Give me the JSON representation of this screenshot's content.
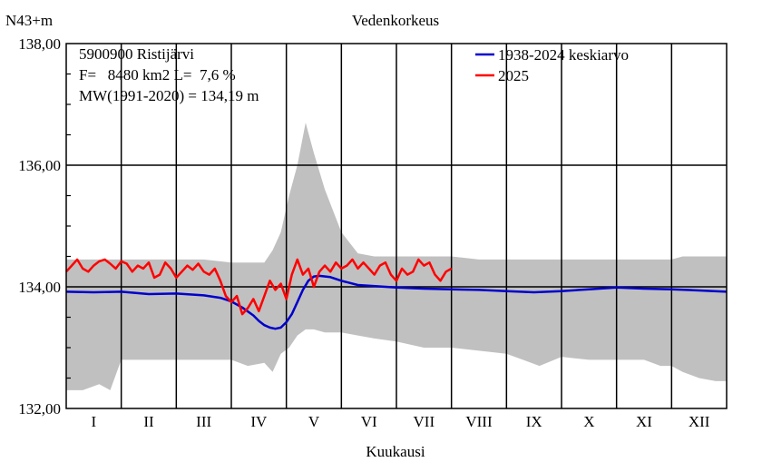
{
  "chart_data": {
    "type": "line",
    "title": "Vedenkorkeus",
    "ylabel": "N43+m",
    "xlabel": "Kuukausi",
    "station": "5900900 Ristijärvi",
    "info_line_1": "F=   8480 km2 L=  7,6 %",
    "info_line_2": "MW(1991-2020) = 134,19 m",
    "ylim": [
      132,
      138
    ],
    "yticks": [
      "132,00",
      "134,00",
      "136,00",
      "138,00"
    ],
    "minor_ytick_step": 0.5,
    "categories": [
      "I",
      "II",
      "III",
      "IV",
      "V",
      "VI",
      "VII",
      "VIII",
      "IX",
      "X",
      "XI",
      "XII"
    ],
    "grid": true,
    "legend_position": "top-right",
    "band": {
      "name": "",
      "color": "#c0c0c0",
      "x": [
        0,
        0.3,
        0.6,
        0.8,
        1.0,
        1.2,
        1.4,
        1.6,
        2.0,
        2.5,
        3.0,
        3.3,
        3.6,
        3.75,
        3.9,
        4.05,
        4.2,
        4.35,
        4.5,
        4.7,
        5.0,
        5.3,
        5.6,
        6.0,
        6.5,
        7.0,
        7.5,
        8.0,
        8.3,
        8.6,
        9.0,
        9.5,
        10.0,
        10.5,
        10.8,
        11.0,
        11.2,
        11.5,
        11.8,
        12.0
      ],
      "low": [
        132.3,
        132.3,
        132.4,
        132.3,
        132.8,
        132.8,
        132.8,
        132.8,
        132.8,
        132.8,
        132.8,
        132.7,
        132.75,
        132.6,
        132.9,
        133.0,
        133.2,
        133.3,
        133.3,
        133.25,
        133.25,
        133.2,
        133.15,
        133.1,
        133.0,
        133.0,
        132.95,
        132.9,
        132.8,
        132.7,
        132.85,
        132.8,
        132.8,
        132.8,
        132.7,
        132.7,
        132.6,
        132.5,
        132.45,
        132.45
      ],
      "high": [
        134.45,
        134.45,
        134.45,
        134.45,
        134.45,
        134.45,
        134.45,
        134.45,
        134.45,
        134.45,
        134.4,
        134.4,
        134.4,
        134.6,
        134.9,
        135.5,
        136.0,
        136.7,
        136.2,
        135.6,
        134.9,
        134.55,
        134.5,
        134.5,
        134.5,
        134.5,
        134.45,
        134.45,
        134.45,
        134.45,
        134.45,
        134.45,
        134.45,
        134.45,
        134.45,
        134.45,
        134.5,
        134.5,
        134.5,
        134.5
      ]
    },
    "series": [
      {
        "name": "1938-2024 keskiarvo",
        "color": "#0000cc",
        "x": [
          0,
          0.5,
          1.0,
          1.5,
          2.0,
          2.5,
          2.8,
          3.0,
          3.2,
          3.4,
          3.5,
          3.6,
          3.7,
          3.8,
          3.9,
          4.0,
          4.1,
          4.2,
          4.3,
          4.4,
          4.5,
          4.6,
          4.8,
          5.0,
          5.3,
          6.0,
          6.5,
          7.0,
          7.5,
          8.0,
          8.5,
          9.0,
          9.5,
          10.0,
          10.5,
          11.0,
          11.5,
          12.0
        ],
        "values": [
          133.92,
          133.91,
          133.92,
          133.88,
          133.89,
          133.86,
          133.82,
          133.76,
          133.66,
          133.53,
          133.44,
          133.37,
          133.33,
          133.31,
          133.33,
          133.42,
          133.55,
          133.75,
          133.95,
          134.1,
          134.17,
          134.18,
          134.16,
          134.1,
          134.03,
          133.99,
          133.97,
          133.96,
          133.95,
          133.93,
          133.91,
          133.93,
          133.96,
          133.99,
          133.97,
          133.96,
          133.94,
          133.92
        ]
      },
      {
        "name": "2025",
        "color": "#ff0000",
        "x": [
          0,
          0.1,
          0.2,
          0.3,
          0.4,
          0.5,
          0.6,
          0.7,
          0.8,
          0.9,
          1.0,
          1.1,
          1.2,
          1.3,
          1.4,
          1.5,
          1.6,
          1.7,
          1.8,
          1.9,
          2.0,
          2.1,
          2.2,
          2.3,
          2.4,
          2.5,
          2.6,
          2.7,
          2.8,
          2.9,
          3.0,
          3.1,
          3.2,
          3.3,
          3.4,
          3.5,
          3.6,
          3.7,
          3.8,
          3.9,
          4.0,
          4.1,
          4.2,
          4.3,
          4.4,
          4.5,
          4.6,
          4.7,
          4.8,
          4.9,
          5.0,
          5.1,
          5.2,
          5.3,
          5.4,
          5.5,
          5.6,
          5.7,
          5.8,
          5.9,
          6.0,
          6.1,
          6.2,
          6.3,
          6.4,
          6.5,
          6.6,
          6.7,
          6.8,
          6.9,
          7.0
        ],
        "values": [
          134.25,
          134.35,
          134.45,
          134.3,
          134.25,
          134.35,
          134.42,
          134.45,
          134.38,
          134.3,
          134.42,
          134.38,
          134.25,
          134.35,
          134.3,
          134.4,
          134.15,
          134.2,
          134.4,
          134.3,
          134.15,
          134.25,
          134.35,
          134.28,
          134.38,
          134.25,
          134.2,
          134.3,
          134.1,
          133.85,
          133.75,
          133.85,
          133.55,
          133.65,
          133.8,
          133.6,
          133.85,
          134.1,
          133.95,
          134.05,
          133.8,
          134.2,
          134.45,
          134.2,
          134.3,
          134.0,
          134.25,
          134.35,
          134.25,
          134.4,
          134.3,
          134.35,
          134.45,
          134.3,
          134.4,
          134.3,
          134.2,
          134.35,
          134.4,
          134.2,
          134.1,
          134.3,
          134.2,
          134.25,
          134.45,
          134.35,
          134.4,
          134.2,
          134.1,
          134.25,
          134.3
        ]
      }
    ]
  }
}
